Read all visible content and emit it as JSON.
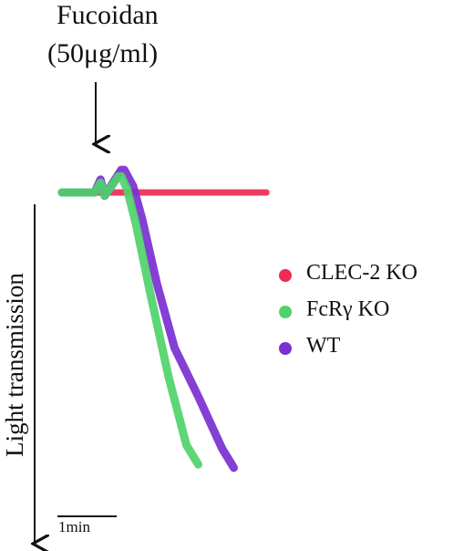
{
  "annotation": {
    "title": "Fucoidan",
    "dose": "(50μg/ml)"
  },
  "ylabel": "Light transmission",
  "scale_bar": {
    "label": "1min",
    "minutes": 1
  },
  "legend": [
    {
      "label": "CLEC-2 KO",
      "color": "#ee2a55"
    },
    {
      "label": "FcRγ KO",
      "color": "#4fd26a"
    },
    {
      "label": "WT",
      "color": "#7a2fd0"
    }
  ],
  "chart_data": {
    "type": "line",
    "xlabel": "",
    "ylabel": "Light transmission",
    "x_unit": "min",
    "xlim": [
      0,
      3.5
    ],
    "ylim": [
      -88,
      8
    ],
    "stimulus_time_min": 0.55,
    "legend_position": "right",
    "series": [
      {
        "name": "CLEC-2 KO",
        "color": "#ee2a55",
        "x": [
          0,
          0.4,
          0.8,
          1.2,
          1.6,
          2.0,
          2.4,
          2.8,
          3.2,
          3.45
        ],
        "y": [
          0,
          0,
          0,
          0,
          0,
          0,
          0,
          0,
          0,
          0
        ]
      },
      {
        "name": "FcRγ KO",
        "color": "#4fd26a",
        "x": [
          0,
          0.55,
          0.65,
          0.72,
          0.95,
          1.0,
          1.1,
          1.25,
          1.5,
          1.8,
          2.1,
          2.3
        ],
        "y": [
          0,
          0,
          3,
          -1,
          5,
          5,
          1,
          -10,
          -32,
          -57,
          -78,
          -84
        ]
      },
      {
        "name": "WT",
        "color": "#7a2fd0",
        "x": [
          0,
          0.55,
          0.65,
          0.72,
          1.0,
          1.05,
          1.2,
          1.35,
          1.6,
          1.9,
          2.3,
          2.7,
          2.9
        ],
        "y": [
          0,
          0,
          4,
          -1,
          7,
          7,
          2,
          -8,
          -28,
          -48,
          -63,
          -79,
          -85
        ]
      }
    ]
  }
}
